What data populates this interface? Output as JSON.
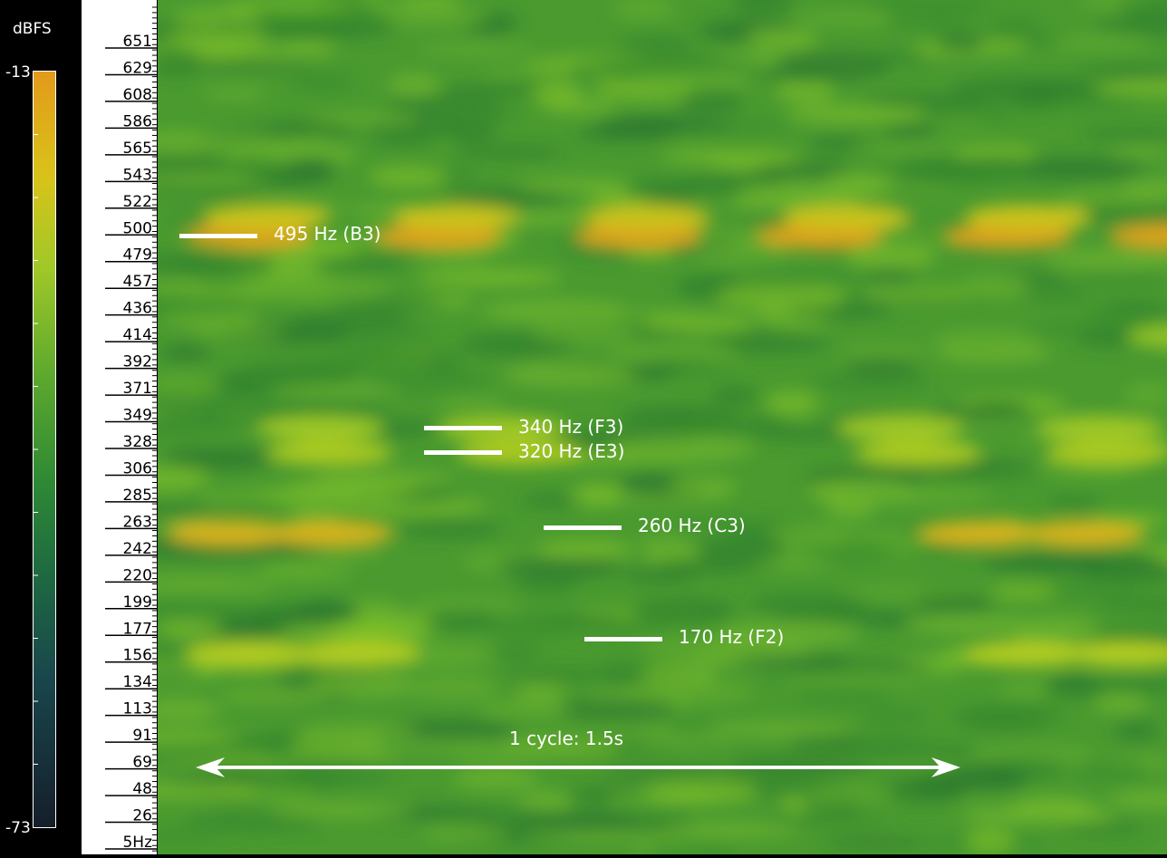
{
  "colorbar": {
    "unit_label": "dBFS",
    "max_label": "-13",
    "min_label": "-73",
    "colors": [
      "#e39a1a",
      "#d8c31a",
      "#a0c828",
      "#5ea92e",
      "#2f8a34",
      "#1e6b40",
      "#19474c",
      "#151e2a"
    ]
  },
  "chart_data": {
    "type": "heatmap",
    "title": "",
    "ylabel": "",
    "xlabel": "",
    "y_unit": "Hz",
    "y_ticks": [
      "651",
      "629",
      "608",
      "586",
      "565",
      "543",
      "522",
      "500",
      "479",
      "457",
      "436",
      "414",
      "392",
      "371",
      "349",
      "328",
      "306",
      "285",
      "263",
      "242",
      "220",
      "199",
      "177",
      "156",
      "134",
      "113",
      "91",
      "69",
      "48",
      "26",
      "5Hz"
    ],
    "value_range_dbfs": [
      -73,
      -13
    ],
    "annotations": [
      {
        "text": "495 Hz (B3)",
        "freq_hz": 495
      },
      {
        "text": "340 Hz (F3)",
        "freq_hz": 340
      },
      {
        "text": "320 Hz (E3)",
        "freq_hz": 320
      },
      {
        "text": "260 Hz (C3)",
        "freq_hz": 260
      },
      {
        "text": "170 Hz (F2)",
        "freq_hz": 170
      }
    ],
    "cycle_label": "1 cycle: 1.5s"
  }
}
